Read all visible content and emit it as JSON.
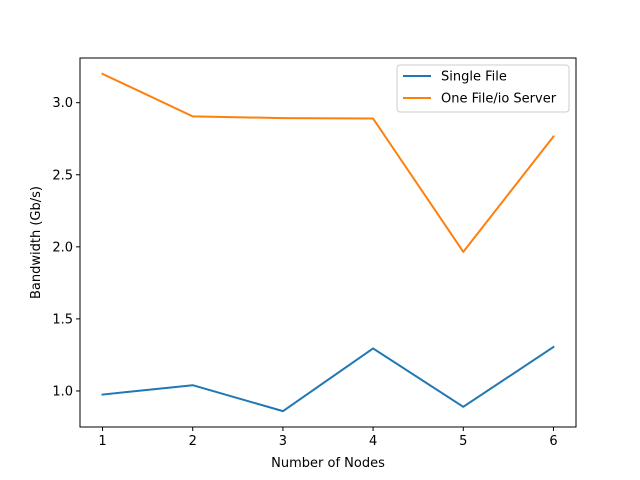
{
  "chart_data": {
    "type": "line",
    "title": "",
    "xlabel": "Number of Nodes",
    "ylabel": "Bandwidth (Gb/s)",
    "x": [
      1,
      2,
      3,
      4,
      5,
      6
    ],
    "xticks": [
      "1",
      "2",
      "3",
      "4",
      "5",
      "6"
    ],
    "yticks": [
      "1.0",
      "1.5",
      "2.0",
      "2.5",
      "3.0"
    ],
    "ytick_values": [
      1.0,
      1.5,
      2.0,
      2.5,
      3.0
    ],
    "xlim": [
      0.75,
      6.25
    ],
    "ylim": [
      0.75,
      3.31
    ],
    "grid": false,
    "legend_position": "top-right",
    "series": [
      {
        "name": "Single File",
        "color": "#1f77b4",
        "values": [
          0.975,
          1.04,
          0.86,
          1.295,
          0.89,
          1.305
        ]
      },
      {
        "name": "One File/io Server",
        "color": "#ff7f0e",
        "values": [
          3.2,
          2.905,
          2.893,
          2.89,
          1.965,
          2.765
        ]
      }
    ]
  }
}
